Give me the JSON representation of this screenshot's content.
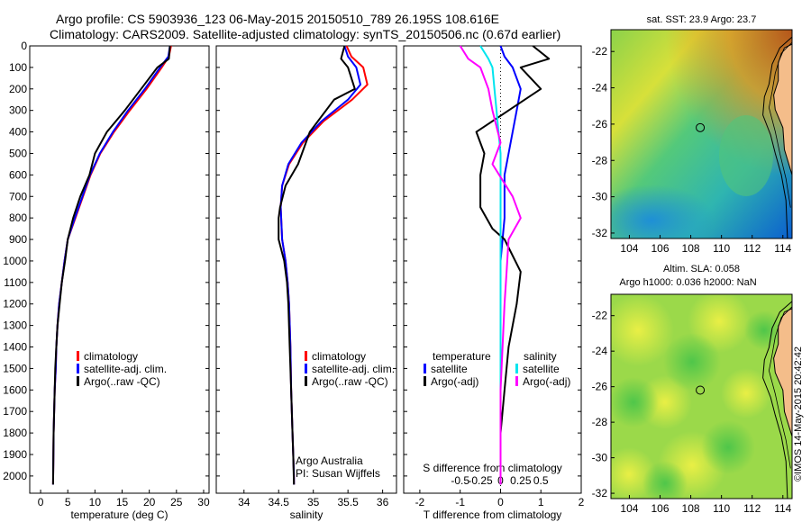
{
  "header": {
    "line1": "Argo profile: CS 5903936_123 06-May-2015 20150510_789 26.195S 108.616E",
    "line2": "Climatology: CARS2009. Satellite-adjusted climatology: synTS_20150506.nc (0.67d earlier)"
  },
  "stamp": "©IMOS 14-May-2015 20:42:42",
  "colors": {
    "climatology": "#ff0000",
    "satellite": "#0000ff",
    "argo": "#000000",
    "sal_satellite": "#00e5ee",
    "sal_argo": "#ff00ff"
  },
  "chart_data": [
    {
      "type": "line",
      "panel": "temperature",
      "xlabel": "temperature (deg C)",
      "ylabel": "",
      "xlim": [
        -2,
        31
      ],
      "ylim": [
        2080,
        0
      ],
      "y_reversed": true,
      "xticks": [
        0,
        5,
        10,
        15,
        20,
        25,
        30
      ],
      "yticks": [
        0,
        100,
        200,
        300,
        400,
        500,
        600,
        700,
        800,
        900,
        1000,
        1100,
        1200,
        1300,
        1400,
        1500,
        1600,
        1700,
        1800,
        1900,
        2000
      ],
      "legend": [
        "climatology",
        "satellite-adj. clim.",
        "Argo(..raw -QC)"
      ],
      "series": [
        {
          "name": "climatology",
          "x": [
            24.0,
            23.6,
            22.3,
            19.5,
            16.4,
            13.5,
            11.0,
            9.2,
            7.8,
            6.4,
            5.0,
            4.4,
            3.9,
            3.4,
            3.1,
            2.9,
            2.8,
            2.6,
            2.5,
            2.4,
            2.3
          ],
          "y": [
            0,
            50,
            100,
            200,
            300,
            400,
            500,
            600,
            700,
            800,
            900,
            1000,
            1100,
            1200,
            1300,
            1400,
            1500,
            1600,
            1700,
            1800,
            2040
          ]
        },
        {
          "name": "satellite-adj. clim.",
          "x": [
            23.8,
            23.5,
            22.0,
            19.2,
            16.1,
            13.3,
            10.9,
            9.1,
            7.7,
            6.3,
            5.0,
            4.4,
            3.9,
            3.4,
            3.1,
            2.9,
            2.8,
            2.6,
            2.5,
            2.4,
            2.3
          ],
          "y": [
            0,
            50,
            100,
            200,
            300,
            400,
            500,
            600,
            700,
            800,
            900,
            1000,
            1100,
            1200,
            1300,
            1400,
            1500,
            1600,
            1700,
            1800,
            2040
          ]
        },
        {
          "name": "Argo(..raw -QC)",
          "x": [
            23.8,
            23.6,
            21.5,
            18.5,
            15.5,
            12.2,
            10.0,
            9.0,
            7.3,
            6.0,
            5.0,
            4.5,
            3.9,
            3.5,
            3.1,
            2.9,
            2.7,
            2.6,
            2.5,
            2.4,
            2.3
          ],
          "y": [
            0,
            60,
            100,
            200,
            300,
            400,
            500,
            600,
            700,
            800,
            900,
            1000,
            1100,
            1200,
            1300,
            1400,
            1500,
            1600,
            1700,
            1800,
            2040
          ]
        }
      ]
    },
    {
      "type": "line",
      "panel": "salinity",
      "xlabel": "salinity",
      "xlim": [
        33.6,
        36.2
      ],
      "ylim": [
        2080,
        0
      ],
      "y_reversed": true,
      "xticks": [
        34,
        34.5,
        35,
        35.5,
        36
      ],
      "legend": [
        "climatology",
        "satellite-adj. clim.",
        "Argo(..raw -QC)"
      ],
      "annotations": [
        "Argo Australia",
        "PI: Susan Wijffels"
      ],
      "series": [
        {
          "name": "climatology",
          "x": [
            35.48,
            35.55,
            35.72,
            35.78,
            35.56,
            35.15,
            34.85,
            34.65,
            34.55,
            34.53,
            34.55,
            34.6,
            34.63,
            34.65,
            34.67,
            34.68,
            34.7,
            34.71,
            34.72,
            34.72
          ],
          "y": [
            0,
            50,
            100,
            180,
            250,
            350,
            450,
            550,
            650,
            750,
            900,
            1000,
            1100,
            1200,
            1400,
            1600,
            1800,
            1900,
            2000,
            2040
          ]
        },
        {
          "name": "satellite-adj. clim.",
          "x": [
            35.45,
            35.5,
            35.62,
            35.68,
            35.5,
            35.12,
            34.83,
            34.64,
            34.55,
            34.53,
            34.55,
            34.6,
            34.63,
            34.65,
            34.67,
            34.68,
            34.7,
            34.71,
            34.72,
            34.72
          ],
          "y": [
            0,
            50,
            100,
            180,
            250,
            350,
            450,
            550,
            650,
            750,
            900,
            1000,
            1100,
            1200,
            1400,
            1600,
            1800,
            1900,
            2000,
            2040
          ]
        },
        {
          "name": "Argo(..raw -QC)",
          "x": [
            35.45,
            35.4,
            35.5,
            35.6,
            35.3,
            34.95,
            34.78,
            34.6,
            34.52,
            34.5,
            34.5,
            34.58,
            34.62,
            34.64,
            34.66,
            34.68,
            34.7,
            34.71,
            34.72
          ],
          "y": [
            0,
            60,
            100,
            200,
            250,
            400,
            550,
            650,
            750,
            800,
            900,
            1000,
            1100,
            1200,
            1400,
            1600,
            1800,
            1900,
            2040
          ]
        }
      ]
    },
    {
      "type": "line",
      "panel": "difference",
      "xlabel": "T difference from climatology",
      "xlabel_top": "S difference from climatology",
      "xlim": [
        -2.4,
        2.0
      ],
      "ylim": [
        2080,
        0
      ],
      "y_reversed": true,
      "xticks": [
        -2,
        -1,
        0,
        1,
        2
      ],
      "xticks_top": [
        "-0.5",
        "-0.25",
        "0",
        "0.25",
        "0.5"
      ],
      "legend_temperature_title": "temperature",
      "legend_salinity_title": "salinity",
      "legend": [
        "satellite",
        "Argo(-adj)",
        "satellite",
        "Argo(-adj)"
      ],
      "series": [
        {
          "name": "temperature satellite",
          "x": [
            0.0,
            0.1,
            0.3,
            0.5,
            0.4,
            0.3,
            0.2,
            0.1,
            0.1,
            0.1,
            0.05,
            0.0,
            0.0,
            0.0,
            0.0,
            0.0,
            0.0,
            0.0
          ],
          "y": [
            0,
            50,
            100,
            200,
            300,
            400,
            500,
            600,
            700,
            800,
            900,
            1000,
            1200,
            1400,
            1600,
            1800,
            1900,
            2040
          ]
        },
        {
          "name": "temperature Argo(-adj)",
          "x": [
            0.8,
            1.2,
            0.5,
            1.0,
            0.2,
            -0.6,
            -0.4,
            -0.5,
            -0.5,
            -0.2,
            0.1,
            0.5,
            0.4,
            0.2,
            0.1,
            0.0,
            0.0,
            0.0
          ],
          "y": [
            0,
            60,
            100,
            200,
            300,
            400,
            500,
            600,
            750,
            850,
            900,
            1050,
            1200,
            1400,
            1600,
            1800,
            1900,
            2040
          ]
        },
        {
          "name": "salinity satellite",
          "x": [
            -0.5,
            -0.3,
            -0.2,
            -0.15,
            -0.1,
            -0.05,
            0.0,
            0.0,
            0.0,
            0.0,
            0.0,
            0.0,
            0.0,
            0.0,
            0.0
          ],
          "y": [
            0,
            60,
            100,
            200,
            300,
            400,
            500,
            600,
            800,
            1000,
            1200,
            1400,
            1600,
            1800,
            2040
          ]
        },
        {
          "name": "salinity Argo(-adj)",
          "x": [
            -1.0,
            -0.8,
            -0.5,
            -0.3,
            -0.2,
            0.0,
            -0.2,
            0.3,
            0.5,
            0.2,
            0.15,
            0.1,
            0.05,
            0.0,
            0.0
          ],
          "y": [
            0,
            60,
            100,
            200,
            300,
            450,
            550,
            700,
            800,
            900,
            1050,
            1200,
            1400,
            1600,
            2040
          ]
        }
      ]
    },
    {
      "type": "heatmap",
      "panel": "map-sst",
      "title": "sat. SST: 23.9  Argo: 23.7",
      "xticks": [
        104,
        106,
        108,
        110,
        112,
        114
      ],
      "yticks": [
        -22,
        -24,
        -26,
        -28,
        -30,
        -32
      ],
      "xlim": [
        102.8,
        114.6
      ],
      "ylim": [
        -32.3,
        -20.8
      ],
      "argo_position": [
        108.616,
        -26.195
      ]
    },
    {
      "type": "heatmap",
      "panel": "map-sla",
      "title": "Altim. SLA: 0.058",
      "subtitle": "Argo h1000: 0.036  h2000: NaN",
      "xticks": [
        104,
        106,
        108,
        110,
        112,
        114
      ],
      "yticks": [
        -22,
        -24,
        -26,
        -28,
        -30,
        -32
      ],
      "xlim": [
        102.8,
        114.6
      ],
      "ylim": [
        -32.3,
        -20.8
      ],
      "argo_position": [
        108.616,
        -26.195
      ]
    }
  ]
}
